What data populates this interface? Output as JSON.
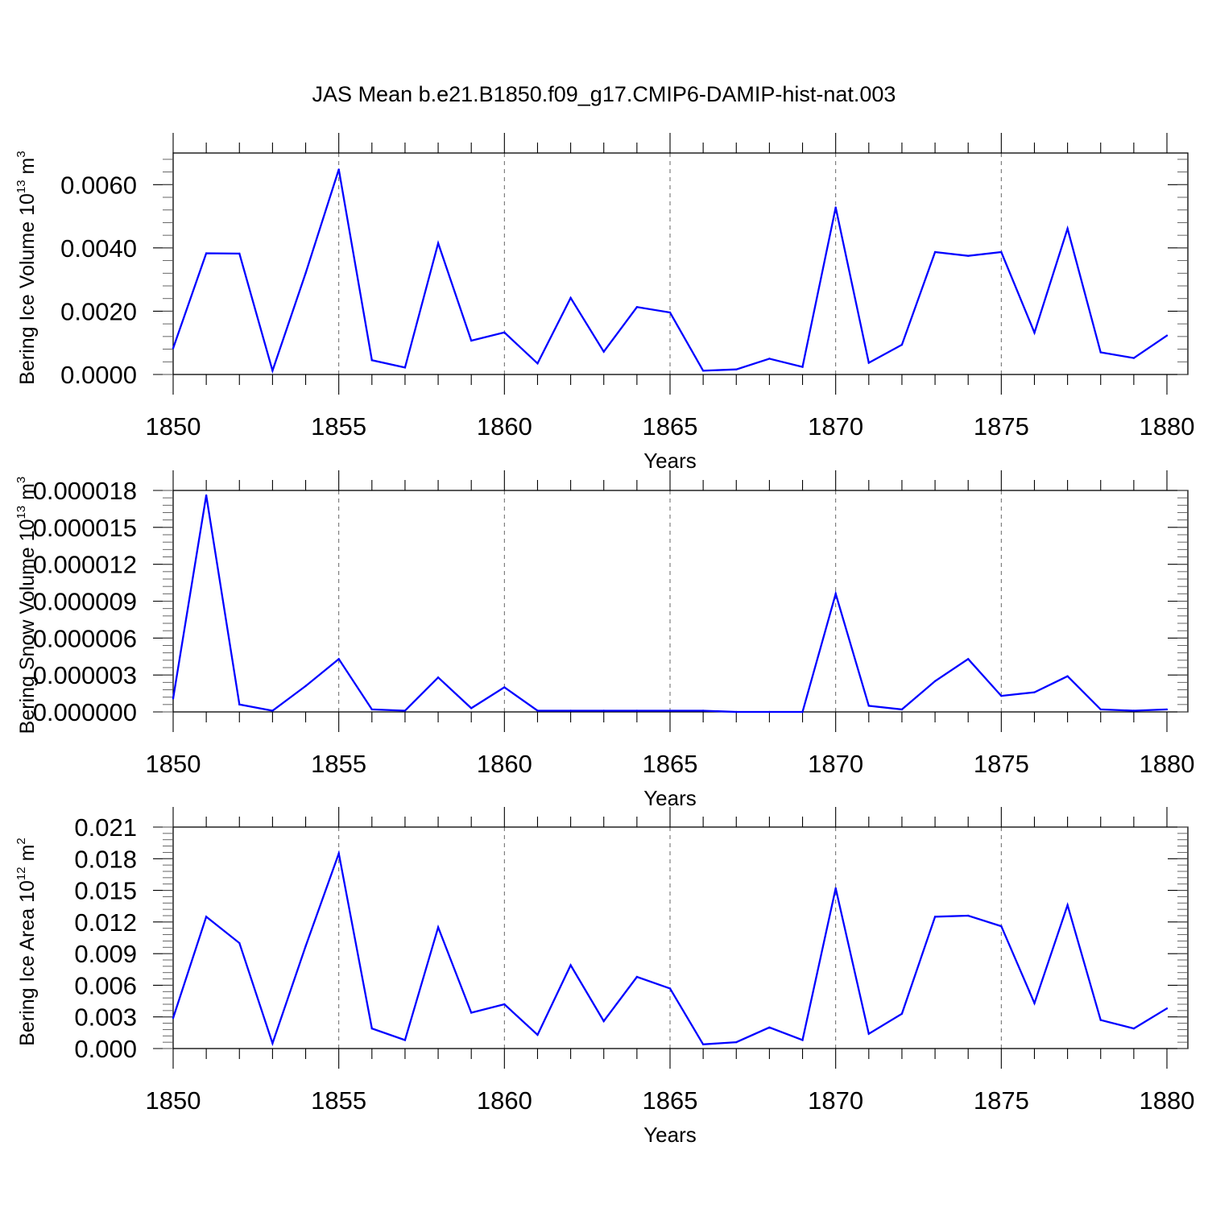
{
  "title": "JAS Mean b.e21.B1850.f09_g17.CMIP6-DAMIP-hist-nat.003",
  "colors": {
    "line": "#0000ff",
    "axis": "#000000",
    "grid": "#666666"
  },
  "chart_data": [
    {
      "type": "line",
      "id": "ice-volume",
      "ylabel_text": "Bering Ice Volume 10",
      "ylabel_exp": "13",
      "ylabel_unit": "m",
      "ylabel_unit_exp": "3",
      "xlabel": "Years",
      "xlim": [
        1850,
        1880
      ],
      "ylim": [
        0,
        0.007
      ],
      "yticks": [
        0.0,
        0.002,
        0.004,
        0.006
      ],
      "ytick_labels": [
        "0.0000",
        "0.0020",
        "0.0040",
        "0.0060"
      ],
      "xticks": [
        1850,
        1855,
        1860,
        1865,
        1870,
        1875,
        1880
      ],
      "xtick_labels": [
        "1850",
        "1855",
        "1860",
        "1865",
        "1870",
        "1875",
        "1880"
      ],
      "series": [
        {
          "name": "Bering Ice Volume",
          "x": [
            1850,
            1851,
            1852,
            1853,
            1854,
            1855,
            1856,
            1857,
            1858,
            1859,
            1860,
            1861,
            1862,
            1863,
            1864,
            1865,
            1866,
            1867,
            1868,
            1869,
            1870,
            1871,
            1872,
            1873,
            1874,
            1875,
            1876,
            1877,
            1878,
            1879,
            1880
          ],
          "values": [
            0.00083,
            0.00383,
            0.00382,
            0.00012,
            0.0032,
            0.00648,
            0.00045,
            0.00022,
            0.00415,
            0.00107,
            0.00133,
            0.00035,
            0.00242,
            0.00072,
            0.00213,
            0.00196,
            0.00012,
            0.00016,
            0.0005,
            0.00024,
            0.00528,
            0.00037,
            0.00094,
            0.00387,
            0.00375,
            0.00387,
            0.00132,
            0.00461,
            0.0007,
            0.00052,
            0.00123
          ]
        }
      ]
    },
    {
      "type": "line",
      "id": "snow-volume",
      "ylabel_text": "Bering Snow Volume 10",
      "ylabel_exp": "13",
      "ylabel_unit": "m",
      "ylabel_unit_exp": "3",
      "xlabel": "Years",
      "xlim": [
        1850,
        1880
      ],
      "ylim": [
        0,
        1.8e-05
      ],
      "yticks": [
        0.0,
        3e-06,
        6e-06,
        9e-06,
        1.2e-05,
        1.5e-05,
        1.8e-05
      ],
      "ytick_labels": [
        "0.000000",
        "0.000003",
        "0.000006",
        "0.000009",
        "0.000012",
        "0.000015",
        "0.000018"
      ],
      "xticks": [
        1850,
        1855,
        1860,
        1865,
        1870,
        1875,
        1880
      ],
      "xtick_labels": [
        "1850",
        "1855",
        "1860",
        "1865",
        "1870",
        "1875",
        "1880"
      ],
      "series": [
        {
          "name": "Bering Snow Volume",
          "x": [
            1850,
            1851,
            1852,
            1853,
            1854,
            1855,
            1856,
            1857,
            1858,
            1859,
            1860,
            1861,
            1862,
            1863,
            1864,
            1865,
            1866,
            1867,
            1868,
            1869,
            1870,
            1871,
            1872,
            1873,
            1874,
            1875,
            1876,
            1877,
            1878,
            1879,
            1880
          ],
          "values": [
            1.1e-06,
            1.76e-05,
            6e-07,
            1e-07,
            2.1e-06,
            4.3e-06,
            2e-07,
            1e-07,
            2.8e-06,
            3e-07,
            2e-06,
            1e-07,
            1e-07,
            1e-07,
            1e-07,
            1e-07,
            1e-07,
            0.0,
            0.0,
            0.0,
            9.6e-06,
            5e-07,
            2e-07,
            2.5e-06,
            4.3e-06,
            1.3e-06,
            1.6e-06,
            2.9e-06,
            2e-07,
            1e-07,
            2e-07
          ]
        }
      ]
    },
    {
      "type": "line",
      "id": "ice-area",
      "ylabel_text": "Bering Ice Area 10",
      "ylabel_exp": "12",
      "ylabel_unit": "m",
      "ylabel_unit_exp": "2",
      "xlabel": "Years",
      "xlim": [
        1850,
        1880
      ],
      "ylim": [
        0,
        0.021
      ],
      "yticks": [
        0.0,
        0.003,
        0.006,
        0.009,
        0.012,
        0.015,
        0.018,
        0.021
      ],
      "ytick_labels": [
        "0.000",
        "0.003",
        "0.006",
        "0.009",
        "0.012",
        "0.015",
        "0.018",
        "0.021"
      ],
      "xticks": [
        1850,
        1855,
        1860,
        1865,
        1870,
        1875,
        1880
      ],
      "xtick_labels": [
        "1850",
        "1855",
        "1860",
        "1865",
        "1870",
        "1875",
        "1880"
      ],
      "series": [
        {
          "name": "Bering Ice Area",
          "x": [
            1850,
            1851,
            1852,
            1853,
            1854,
            1855,
            1856,
            1857,
            1858,
            1859,
            1860,
            1861,
            1862,
            1863,
            1864,
            1865,
            1866,
            1867,
            1868,
            1869,
            1870,
            1871,
            1872,
            1873,
            1874,
            1875,
            1876,
            1877,
            1878,
            1879,
            1880
          ],
          "values": [
            0.0029,
            0.0125,
            0.01,
            0.0005,
            0.0097,
            0.0185,
            0.0019,
            0.0008,
            0.0115,
            0.0034,
            0.0042,
            0.0013,
            0.0079,
            0.0026,
            0.0068,
            0.0057,
            0.0004,
            0.0006,
            0.002,
            0.0008,
            0.0152,
            0.0014,
            0.0033,
            0.0125,
            0.0126,
            0.0116,
            0.0043,
            0.0136,
            0.0027,
            0.0019,
            0.0038
          ]
        }
      ]
    }
  ]
}
